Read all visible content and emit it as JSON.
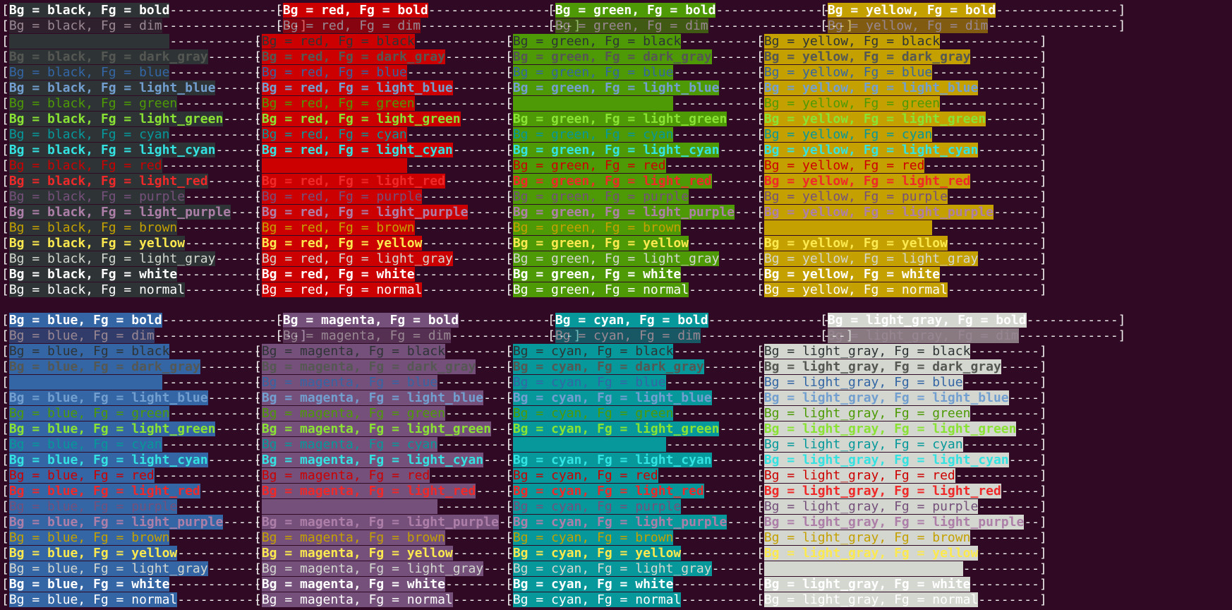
{
  "palette": {
    "terminal_bg": "#300a24",
    "bg": {
      "black": "#2e3436",
      "red": "#cc0000",
      "green": "#4e9a06",
      "yellow": "#c4a000",
      "blue": "#3465a4",
      "magenta": "#75507b",
      "cyan": "#06989a",
      "light_gray": "#d3d7cf"
    },
    "fg": {
      "bold": "#ffffff",
      "black": "#2e3436",
      "dark_gray": "#555753",
      "blue": "#3465a4",
      "light_blue": "#729fcf",
      "green": "#4e9a06",
      "light_green": "#8ae234",
      "cyan": "#06989a",
      "light_cyan": "#34e2e2",
      "red": "#cc0000",
      "light_red": "#ef2929",
      "purple": "#75507b",
      "light_purple": "#ad7fa8",
      "brown": "#c4a000",
      "yellow": "#fce94f",
      "light_gray": "#d3d7cf",
      "white": "#ffffff",
      "normal": "#ffffff"
    }
  },
  "panels": [
    {
      "bg_name": "black",
      "lines": [
        "Bg = black, Fg = bold",
        "Bg = black, Fg = dim",
        "",
        "Bg = black, Fg = dark_gray",
        "Bg = black, Fg = blue",
        "Bg = black, Fg = light_blue",
        "Bg = black, Fg = green",
        "Bg = black, Fg = light_green",
        "Bg = black, Fg = cyan",
        "Bg = black, Fg = light_cyan",
        "Bg = black, Fg = red",
        "Bg = black, Fg = light_red",
        "Bg = black, Fg = purple",
        "Bg = black, Fg = light_purple",
        "Bg = black, Fg = brown",
        "Bg = black, Fg = yellow",
        "Bg = black, Fg = light_gray",
        "Bg = black, Fg = white",
        "Bg = black, Fg = normal"
      ]
    },
    {
      "bg_name": "red",
      "lines": [
        "Bg = red, Fg = bold",
        "Bg = red, Fg = dim",
        "Bg = red, Fg = black",
        "Bg = red, Fg = dark_gray",
        "Bg = red, Fg = blue",
        "Bg = red, Fg = light_blue",
        "Bg = red, Fg = green",
        "Bg = red, Fg = light_green",
        "Bg = red, Fg = cyan",
        "Bg = red, Fg = light_cyan",
        "",
        "Bg = red, Fg = light_red",
        "Bg = red, Fg = purple",
        "Bg = red, Fg = light_purple",
        "Bg = red, Fg = brown",
        "Bg = red, Fg = yellow",
        "Bg = red, Fg = light_gray",
        "Bg = red, Fg = white",
        "Bg = red, Fg = normal"
      ]
    },
    {
      "bg_name": "green",
      "lines": [
        "Bg = green, Fg = bold",
        "Bg = green, Fg = dim",
        "Bg = green, Fg = black",
        "Bg = green, Fg = dark_gray",
        "Bg = green, Fg = blue",
        "Bg = green, Fg = light_blue",
        "",
        "Bg = green, Fg = light_green",
        "Bg = green, Fg = cyan",
        "Bg = green, Fg = light_cyan",
        "Bg = green, Fg = red",
        "Bg = green, Fg = light_red",
        "Bg = green, Fg = purple",
        "Bg = green, Fg = light_purple",
        "Bg = green, Fg = brown",
        "Bg = green, Fg = yellow",
        "Bg = green, Fg = light_gray",
        "Bg = green, Fg = white",
        "Bg = green, Fg = normal"
      ]
    },
    {
      "bg_name": "yellow",
      "lines": [
        "Bg = yellow, Fg = bold",
        "Bg = yellow, Fg = dim",
        "Bg = yellow, Fg = black",
        "Bg = yellow, Fg = dark_gray",
        "Bg = yellow, Fg = blue",
        "Bg = yellow, Fg = light_blue",
        "Bg = yellow, Fg = green",
        "Bg = yellow, Fg = light_green",
        "Bg = yellow, Fg = cyan",
        "Bg = yellow, Fg = light_cyan",
        "Bg = yellow, Fg = red",
        "Bg = yellow, Fg = light_red",
        "Bg = yellow, Fg = purple",
        "Bg = yellow, Fg = light_purple",
        "",
        "Bg = yellow, Fg = yellow",
        "Bg = yellow, Fg = light_gray",
        "Bg = yellow, Fg = white",
        "Bg = yellow, Fg = normal"
      ]
    },
    {
      "bg_name": "blue",
      "lines": [
        "Bg = blue, Fg = bold",
        "Bg = blue, Fg = dim",
        "Bg = blue, Fg = black",
        "Bg = blue, Fg = dark_gray",
        "",
        "Bg = blue, Fg = light_blue",
        "Bg = blue, Fg = green",
        "Bg = blue, Fg = light_green",
        "Bg = blue, Fg = cyan",
        "Bg = blue, Fg = light_cyan",
        "Bg = blue, Fg = red",
        "Bg = blue, Fg = light_red",
        "Bg = blue, Fg = purple",
        "Bg = blue, Fg = light_purple",
        "Bg = blue, Fg = brown",
        "Bg = blue, Fg = yellow",
        "Bg = blue, Fg = light_gray",
        "Bg = blue, Fg = white",
        "Bg = blue, Fg = normal"
      ]
    },
    {
      "bg_name": "magenta",
      "lines": [
        "Bg = magenta, Fg = bold",
        "Bg = magenta, Fg = dim",
        "Bg = magenta, Fg = black",
        "Bg = magenta, Fg = dark_gray",
        "Bg = magenta, Fg = blue",
        "Bg = magenta, Fg = light_blue",
        "Bg = magenta, Fg = green",
        "Bg = magenta, Fg = light_green",
        "Bg = magenta, Fg = cyan",
        "Bg = magenta, Fg = light_cyan",
        "Bg = magenta, Fg = red",
        "Bg = magenta, Fg = light_red",
        "",
        "Bg = magenta, Fg = light_purple",
        "Bg = magenta, Fg = brown",
        "Bg = magenta, Fg = yellow",
        "Bg = magenta, Fg = light_gray",
        "Bg = magenta, Fg = white",
        "Bg = magenta, Fg = normal"
      ]
    },
    {
      "bg_name": "cyan",
      "lines": [
        "Bg = cyan, Fg = bold",
        "Bg = cyan, Fg = dim",
        "Bg = cyan, Fg = black",
        "Bg = cyan, Fg = dark_gray",
        "Bg = cyan, Fg = blue",
        "Bg = cyan, Fg = light_blue",
        "Bg = cyan, Fg = green",
        "Bg = cyan, Fg = light_green",
        "",
        "Bg = cyan, Fg = light_cyan",
        "Bg = cyan, Fg = red",
        "Bg = cyan, Fg = light_red",
        "Bg = cyan, Fg = purple",
        "Bg = cyan, Fg = light_purple",
        "Bg = cyan, Fg = brown",
        "Bg = cyan, Fg = yellow",
        "Bg = cyan, Fg = light_gray",
        "Bg = cyan, Fg = white",
        "Bg = cyan, Fg = normal"
      ]
    },
    {
      "bg_name": "light_gray",
      "lines": [
        "Bg = light_gray, Fg = bold",
        "Bg = light_gray, Fg = dim",
        "Bg = light_gray, Fg = black",
        "Bg = light_gray, Fg = dark_gray",
        "Bg = light_gray, Fg = blue",
        "Bg = light_gray, Fg = light_blue",
        "Bg = light_gray, Fg = green",
        "Bg = light_gray, Fg = light_green",
        "Bg = light_gray, Fg = cyan",
        "Bg = light_gray, Fg = light_cyan",
        "Bg = light_gray, Fg = red",
        "Bg = light_gray, Fg = light_red",
        "Bg = light_gray, Fg = purple",
        "Bg = light_gray, Fg = light_purple",
        "Bg = light_gray, Fg = brown",
        "Bg = light_gray, Fg = yellow",
        "",
        "Bg = light_gray, Fg = white",
        "Bg = light_gray, Fg = normal"
      ]
    }
  ]
}
